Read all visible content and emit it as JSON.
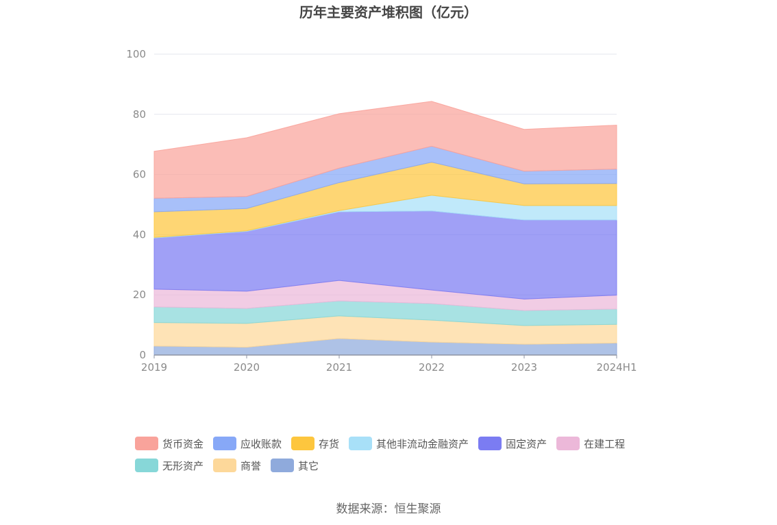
{
  "chart_data": {
    "type": "area",
    "stacked": true,
    "title": "历年主要资产堆积图（亿元）",
    "x": [
      "2019",
      "2020",
      "2021",
      "2022",
      "2023",
      "2024H1"
    ],
    "yticks": [
      "0",
      "20",
      "40",
      "60",
      "80",
      "100"
    ],
    "ylim": [
      0,
      100
    ],
    "grid": true,
    "legend_position": "bottom",
    "series": [
      {
        "name": "其它",
        "color": "#8faadc",
        "values": [
          3.0,
          2.6,
          5.5,
          4.3,
          3.6,
          4.0
        ]
      },
      {
        "name": "商誉",
        "color": "#fdd89a",
        "values": [
          7.8,
          7.9,
          7.5,
          7.3,
          6.2,
          6.2
        ]
      },
      {
        "name": "无形资产",
        "color": "#87d7d8",
        "values": [
          5.2,
          5.0,
          5.0,
          5.5,
          5.0,
          5.1
        ]
      },
      {
        "name": "在建工程",
        "color": "#ecb8d9",
        "values": [
          5.9,
          5.7,
          6.8,
          4.5,
          3.8,
          4.6
        ]
      },
      {
        "name": "固定资产",
        "color": "#7b7cf2",
        "values": [
          17.0,
          19.9,
          22.8,
          26.3,
          26.3,
          25.0
        ]
      },
      {
        "name": "其他非流动金融资产",
        "color": "#a8e0f8",
        "values": [
          0.2,
          0.2,
          0.4,
          5.2,
          4.8,
          4.8
        ]
      },
      {
        "name": "存货",
        "color": "#fdc63e",
        "values": [
          8.5,
          7.4,
          9.3,
          11.0,
          7.2,
          7.3
        ]
      },
      {
        "name": "应收账款",
        "color": "#87a8f7",
        "values": [
          4.5,
          4.0,
          4.8,
          5.3,
          4.2,
          4.8
        ]
      },
      {
        "name": "货币资金",
        "color": "#f9a39b",
        "values": [
          15.6,
          19.5,
          18.1,
          14.9,
          13.9,
          14.6
        ]
      }
    ]
  },
  "legend": {
    "row1": [
      {
        "label": "货币资金",
        "color": "#f9a39b"
      },
      {
        "label": "应收账款",
        "color": "#87a8f7"
      },
      {
        "label": "存货",
        "color": "#fdc63e"
      },
      {
        "label": "其他非流动金融资产",
        "color": "#a8e0f8"
      },
      {
        "label": "固定资产",
        "color": "#7b7cf2"
      },
      {
        "label": "在建工程",
        "color": "#ecb8d9"
      }
    ],
    "row2": [
      {
        "label": "无形资产",
        "color": "#87d7d8"
      },
      {
        "label": "商誉",
        "color": "#fdd89a"
      },
      {
        "label": "其它",
        "color": "#8faadc"
      }
    ]
  },
  "source": "数据来源：恒生聚源"
}
